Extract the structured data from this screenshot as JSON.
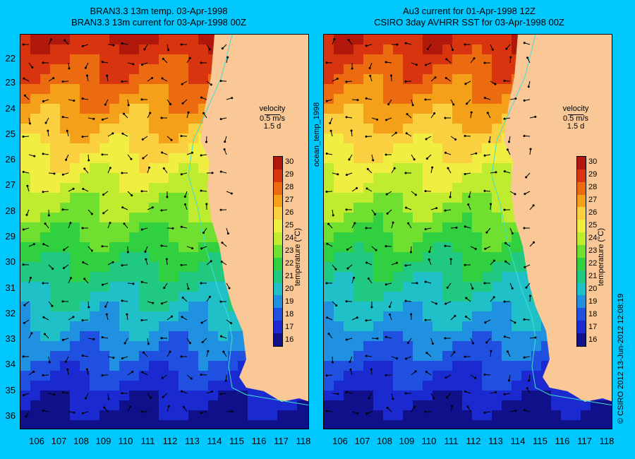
{
  "left_panel": {
    "title_line1": "BRAN3.3 13m temp. 03-Apr-1998",
    "title_line2": "BRAN3.3 13m current for 03-Apr-1998 00Z"
  },
  "right_panel": {
    "title_line1": "Au3 current for 01-Apr-1998 12Z",
    "title_line2": "CSIRO 3day AVHRR SST for 03-Apr-1998 00Z"
  },
  "latitude_ticks": [
    "22",
    "23",
    "24",
    "25",
    "26",
    "27",
    "28",
    "29",
    "30",
    "31",
    "32",
    "33",
    "34",
    "35",
    "36"
  ],
  "longitude_ticks": [
    "106",
    "107",
    "108",
    "109",
    "110",
    "111",
    "112",
    "113",
    "114",
    "115",
    "116",
    "117",
    "118"
  ],
  "velocity_legend": {
    "label": "velocity",
    "speed": "0.5 m/s",
    "duration": "1.5 d"
  },
  "colorbar": {
    "ticks": [
      "30",
      "29",
      "28",
      "27",
      "26",
      "25",
      "24",
      "23",
      "22",
      "21",
      "20",
      "19",
      "18",
      "17",
      "16"
    ],
    "title": "temperature (°C)",
    "colors": [
      "#b0180c",
      "#d83410",
      "#ec6a10",
      "#f4a018",
      "#fad040",
      "#f0ee40",
      "#c0ec30",
      "#70e030",
      "#30d040",
      "#20c880",
      "#20c0c8",
      "#2090e0",
      "#2050e0",
      "#1a2ad0",
      "#10108a"
    ]
  },
  "side_label": "ocean_temp_1998",
  "footer": "© CSIRO 2012   13-Jun-2012 12:08:19",
  "colors": {
    "background": "#00c8ff",
    "land": "#f9c896",
    "coast_contour": "#40e0d0"
  }
}
